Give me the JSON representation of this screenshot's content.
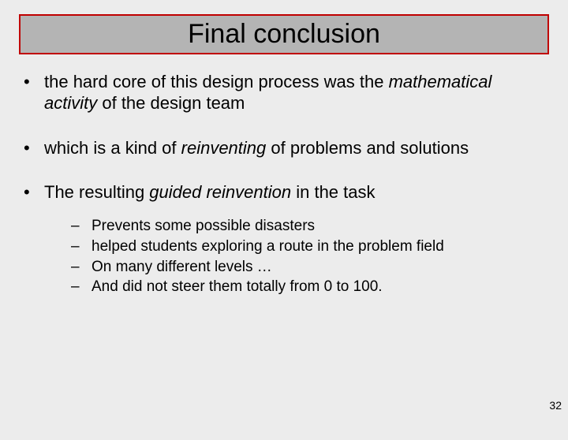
{
  "title": "Final conclusion",
  "bullets": [
    {
      "segments": [
        {
          "t": "the hard core of this design process was the ",
          "i": false
        },
        {
          "t": "mathematical activity",
          "i": true
        },
        {
          "t": " of the design team",
          "i": false
        }
      ]
    },
    {
      "segments": [
        {
          "t": "which is a kind of ",
          "i": false
        },
        {
          "t": "reinventing",
          "i": true
        },
        {
          "t": " of problems and solutions",
          "i": false
        }
      ]
    },
    {
      "segments": [
        {
          "t": "The resulting ",
          "i": false
        },
        {
          "t": "guided reinvention",
          "i": true
        },
        {
          "t": " in the task",
          "i": false
        }
      ],
      "subs": [
        "Prevents some possible disasters",
        "helped students exploring a route in the problem field",
        "On many different levels …",
        "And did not steer them totally from 0 to 100."
      ]
    }
  ],
  "page_number": "32",
  "colors": {
    "background": "#ececec",
    "title_bg": "#b4b4b4",
    "title_border": "#c00000",
    "text": "#000000"
  },
  "fonts": {
    "title_size_pt": 34,
    "body_size_pt": 22,
    "sub_size_pt": 19,
    "pagenum_size_pt": 14
  }
}
